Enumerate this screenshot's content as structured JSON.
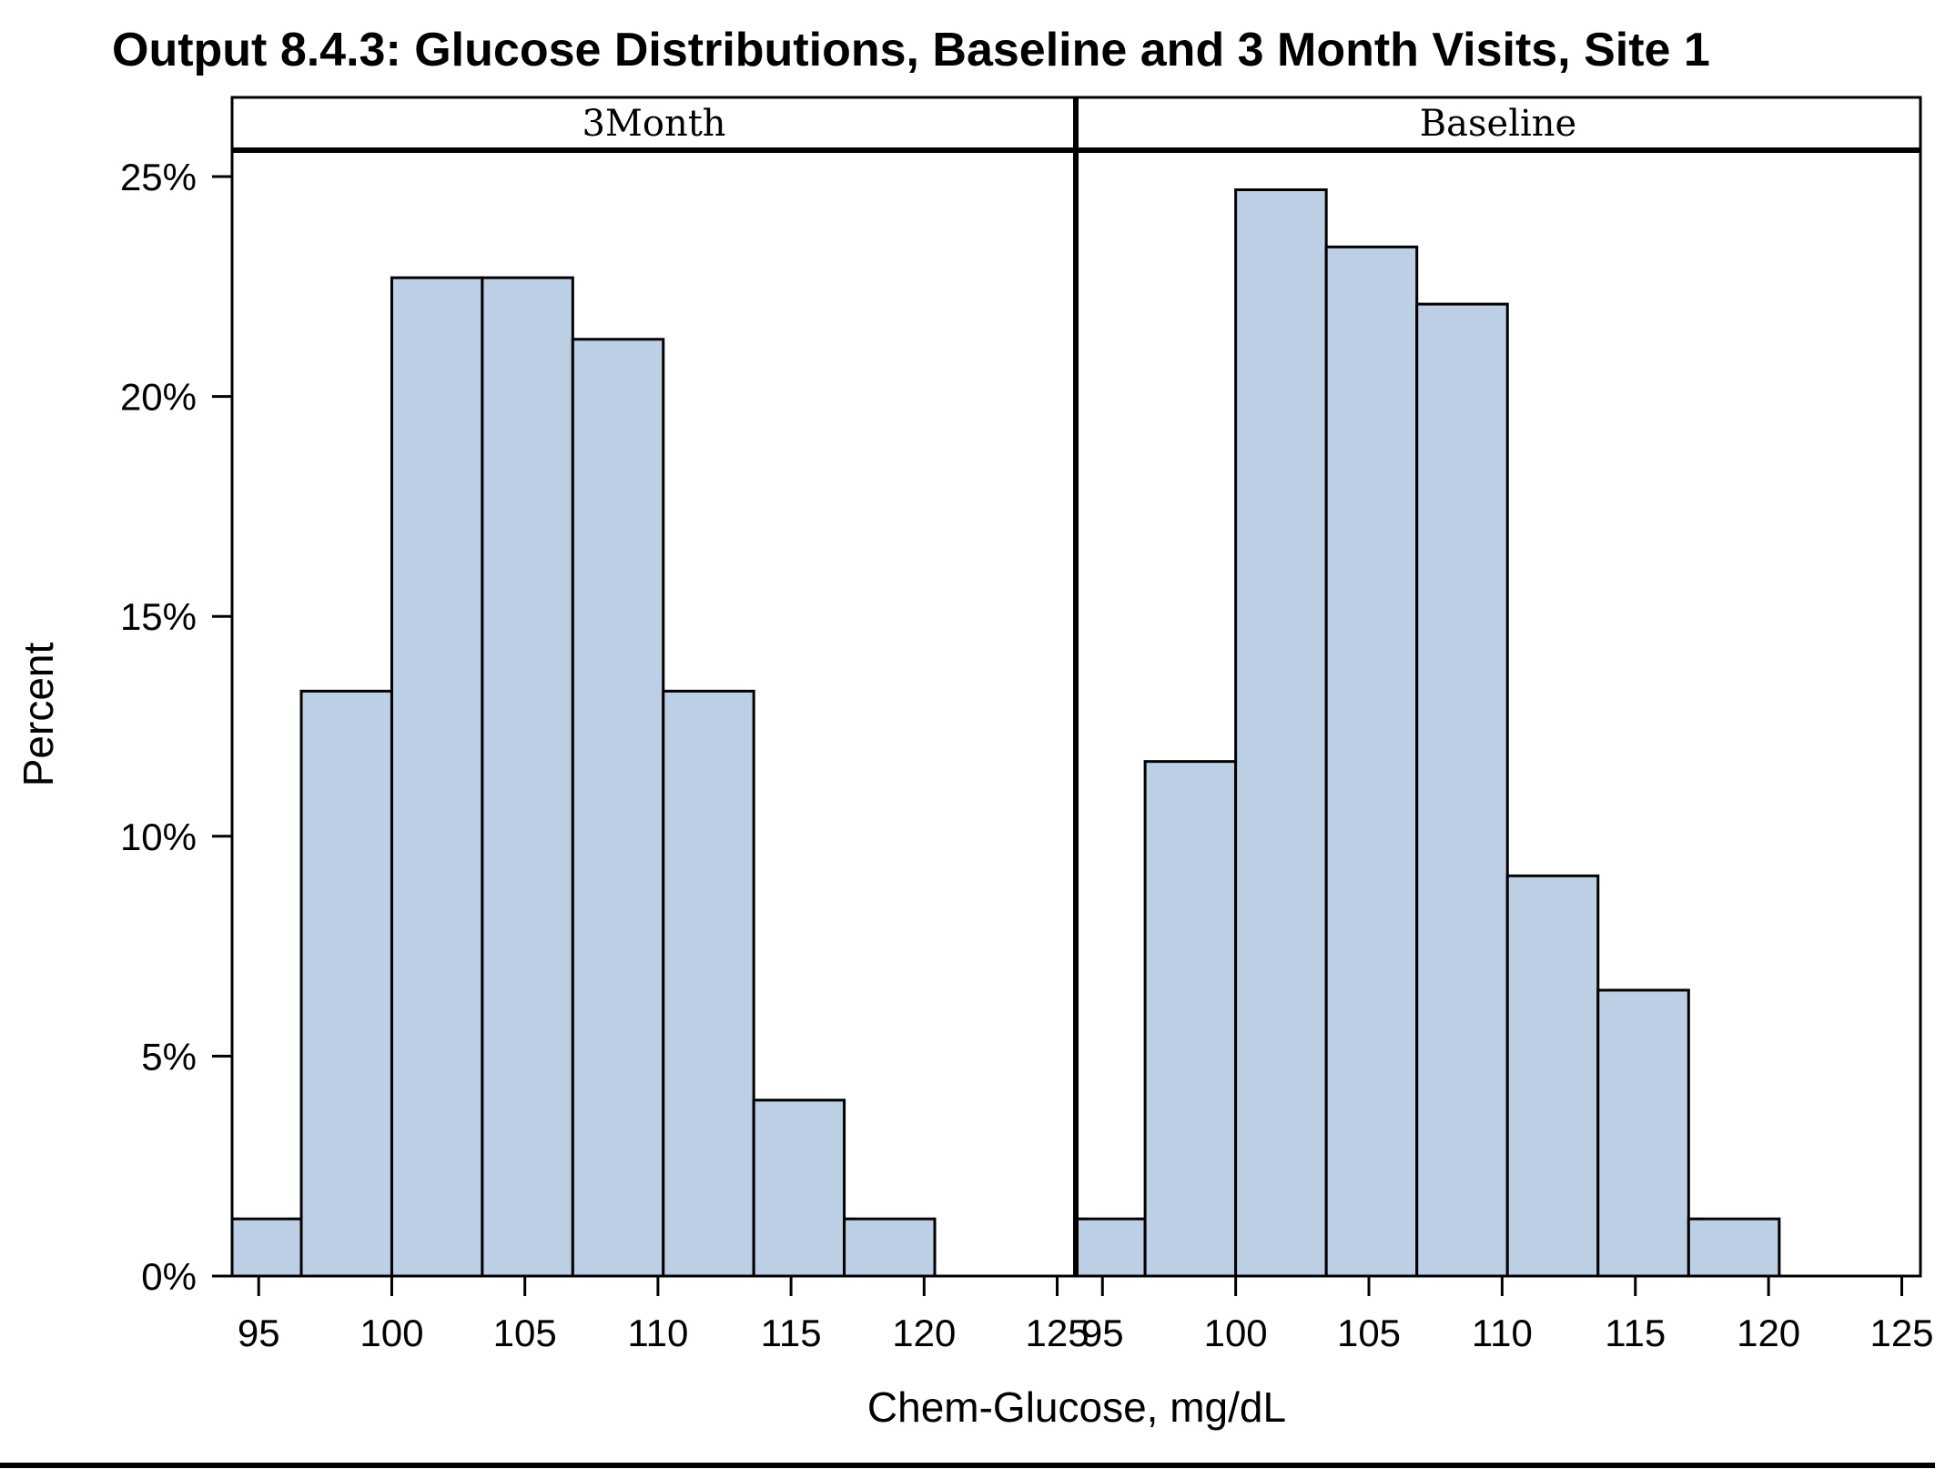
{
  "chart_data": {
    "type": "bar",
    "title": "Output 8.4.3: Glucose Distributions, Baseline and 3 Month Visits, Site 1",
    "xlabel": "Chem-Glucose, mg/dL",
    "ylabel": "Percent",
    "xlim": [
      94,
      125.7
    ],
    "ylim": [
      0,
      25.6
    ],
    "x_ticks": [
      95,
      100,
      105,
      110,
      115,
      120,
      125
    ],
    "y_ticks": [
      "0%",
      "5%",
      "10%",
      "15%",
      "20%",
      "25%"
    ],
    "y_tick_values": [
      0,
      5,
      10,
      15,
      20,
      25
    ],
    "bin_edges": [
      93.2,
      96.6,
      100.0,
      103.4,
      106.8,
      110.2,
      113.6,
      117.0,
      120.4
    ],
    "fill_color": "#bccfe5",
    "edge_color": "#000000",
    "grid": false,
    "panels": [
      {
        "label": "3Month",
        "values": [
          1.3,
          13.3,
          22.7,
          22.7,
          21.3,
          13.3,
          4.0,
          1.3
        ]
      },
      {
        "label": "Baseline",
        "values": [
          1.3,
          11.7,
          24.7,
          23.4,
          22.1,
          9.1,
          6.5,
          1.3
        ]
      }
    ]
  }
}
